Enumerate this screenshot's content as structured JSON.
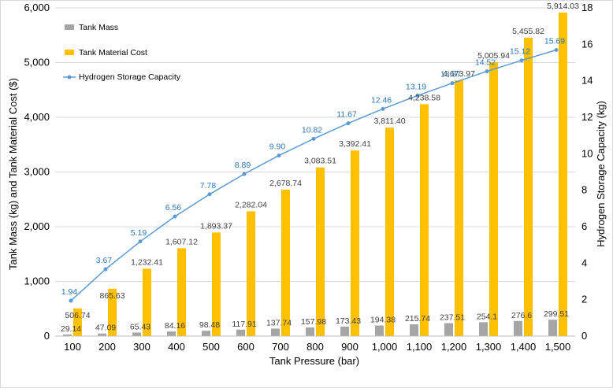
{
  "chart_data": {
    "type": "bar",
    "x": [
      100,
      200,
      300,
      400,
      500,
      600,
      700,
      800,
      900,
      1000,
      1100,
      1200,
      1300,
      1400,
      1500
    ],
    "x_tick_labels": [
      "100",
      "200",
      "300",
      "400",
      "500",
      "600",
      "700",
      "800",
      "900",
      "1,000",
      "1,100",
      "1,200",
      "1,300",
      "1,400",
      "1,500"
    ],
    "xlabel": "Tank Pressure (bar)",
    "ylabel": "Tank Mass (kg) and Tank Material Cost ($)",
    "y2label": "Hydrogen Storage Capacity (kg)",
    "ylim": [
      0,
      6000
    ],
    "y_ticks": [
      "0",
      "1,000",
      "2,000",
      "3,000",
      "4,000",
      "5,000",
      "6,000"
    ],
    "y2lim": [
      0,
      18
    ],
    "y2_ticks": [
      "0",
      "2",
      "4",
      "6",
      "8",
      "10",
      "12",
      "14",
      "16",
      "18"
    ],
    "grid": true,
    "legend_position": "top-left",
    "series": [
      {
        "name": "Tank Mass",
        "kind": "bar",
        "axis": "left",
        "color": "#a5a5a5",
        "values": [
          29.14,
          47.09,
          65.43,
          84.16,
          98.48,
          117.91,
          137.74,
          157.98,
          173.43,
          194.38,
          215.74,
          237.51,
          254.1,
          276.6,
          299.51
        ],
        "labels": [
          "29.14",
          "47.09",
          "65.43",
          "84.16",
          "98.48",
          "117.91",
          "137.74",
          "157.98",
          "173.43",
          "194.38",
          "215.74",
          "237.51",
          "254.1",
          "276.6",
          "299.51"
        ],
        "label_color": "#404040"
      },
      {
        "name": "Tank Material Cost",
        "kind": "bar",
        "axis": "left",
        "color": "#ffc000",
        "values": [
          506.74,
          865.63,
          1232.41,
          1607.12,
          1893.37,
          2282.04,
          2678.74,
          3083.51,
          3392.41,
          3811.4,
          4238.58,
          4673.97,
          5005.94,
          5455.82,
          5914.03
        ],
        "labels": [
          "506.74",
          "865.63",
          "1,232.41",
          "1,607.12",
          "1,893.37",
          "2,282.04",
          "2,678.74",
          "3,083.51",
          "3,392.41",
          "3,811.40",
          "4,238.58",
          "4,673.97",
          "5,005.94",
          "5,455.82",
          "5,914.03"
        ],
        "label_color": "#404040"
      },
      {
        "name": "Hydrogen Storage Capacity",
        "kind": "line",
        "axis": "right",
        "color": "#5b9bd5",
        "values": [
          1.94,
          3.67,
          5.19,
          6.56,
          7.78,
          8.89,
          9.9,
          10.82,
          11.67,
          12.46,
          13.19,
          13.87,
          14.52,
          15.12,
          15.69
        ],
        "labels": [
          "1.94",
          "3.67",
          "5.19",
          "6.56",
          "7.78",
          "8.89",
          "9.90",
          "10.82",
          "11.67",
          "12.46",
          "13.19",
          "13.87",
          "14.52",
          "15.12",
          "15.69"
        ],
        "label_color": "#2e75b6"
      }
    ]
  }
}
